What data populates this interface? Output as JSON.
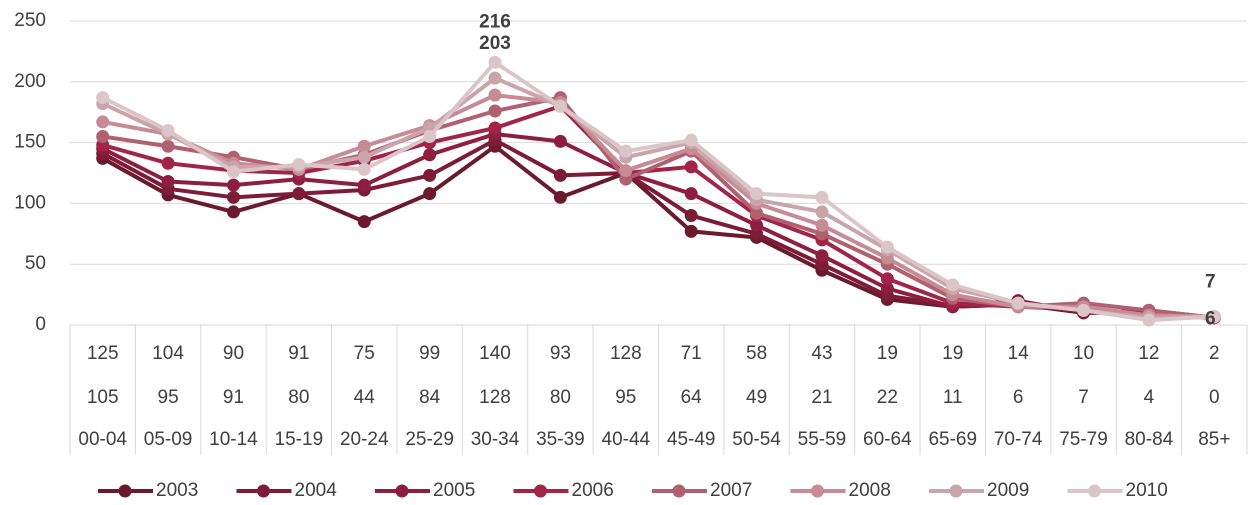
{
  "chart_data": {
    "type": "line",
    "categories": [
      "00-04",
      "05-09",
      "10-14",
      "15-19",
      "20-24",
      "25-29",
      "30-34",
      "35-39",
      "40-44",
      "45-49",
      "50-54",
      "55-59",
      "60-64",
      "65-69",
      "70-74",
      "75-79",
      "80-84",
      "85+"
    ],
    "series": [
      {
        "name": "2003",
        "color": "#6b1a2e",
        "values": [
          137,
          107,
          93,
          108,
          85,
          108,
          147,
          105,
          125,
          77,
          72,
          45,
          21,
          15,
          17,
          10,
          10,
          6
        ],
        "value_labels": [
          null,
          null,
          null,
          null,
          null,
          null,
          null,
          null,
          null,
          null,
          null,
          null,
          null,
          null,
          null,
          null,
          null,
          "6"
        ]
      },
      {
        "name": "2004",
        "color": "#7c1c37",
        "values": [
          141,
          112,
          105,
          108,
          111,
          123,
          152,
          123,
          125,
          90,
          75,
          50,
          24,
          16,
          20,
          10,
          12,
          6
        ],
        "value_labels": [
          null,
          null,
          null,
          null,
          null,
          null,
          null,
          null,
          null,
          null,
          null,
          null,
          null,
          null,
          null,
          null,
          null,
          null
        ]
      },
      {
        "name": "2005",
        "color": "#8e1e40",
        "values": [
          145,
          118,
          115,
          120,
          115,
          140,
          157,
          151,
          125,
          108,
          82,
          57,
          30,
          15,
          17,
          12,
          10,
          6
        ],
        "value_labels": [
          null,
          null,
          null,
          null,
          null,
          null,
          null,
          null,
          null,
          null,
          null,
          null,
          null,
          null,
          null,
          null,
          null,
          null
        ]
      },
      {
        "name": "2006",
        "color": "#a32449",
        "values": [
          148,
          133,
          127,
          125,
          135,
          150,
          162,
          180,
          125,
          130,
          90,
          70,
          38,
          18,
          15,
          13,
          8,
          6
        ],
        "value_labels": [
          null,
          null,
          null,
          null,
          null,
          null,
          null,
          null,
          null,
          null,
          null,
          null,
          null,
          null,
          null,
          null,
          null,
          null
        ]
      },
      {
        "name": "2007",
        "color": "#b0606f",
        "values": [
          155,
          147,
          138,
          128,
          140,
          160,
          176,
          187,
          120,
          143,
          92,
          75,
          50,
          22,
          15,
          18,
          12,
          6
        ],
        "value_labels": [
          null,
          null,
          null,
          null,
          null,
          null,
          null,
          null,
          null,
          null,
          null,
          null,
          null,
          null,
          null,
          null,
          null,
          null
        ]
      },
      {
        "name": "2008",
        "color": "#c68b94",
        "values": [
          167,
          157,
          133,
          128,
          147,
          164,
          189,
          183,
          127,
          145,
          100,
          82,
          55,
          25,
          15,
          15,
          8,
          7
        ],
        "value_labels": [
          null,
          null,
          null,
          null,
          null,
          null,
          null,
          null,
          null,
          null,
          null,
          null,
          null,
          null,
          null,
          null,
          null,
          null
        ]
      },
      {
        "name": "2009",
        "color": "#c9a4aa",
        "values": [
          182,
          157,
          130,
          130,
          138,
          162,
          203,
          180,
          138,
          150,
          103,
          93,
          62,
          30,
          18,
          12,
          6,
          7
        ],
        "value_labels": [
          null,
          null,
          null,
          null,
          null,
          null,
          "203",
          null,
          null,
          null,
          null,
          null,
          null,
          null,
          null,
          null,
          null,
          null
        ]
      },
      {
        "name": "2010",
        "color": "#dcc5c9",
        "values": [
          187,
          160,
          126,
          132,
          128,
          155,
          216,
          180,
          143,
          152,
          108,
          105,
          64,
          33,
          18,
          12,
          4,
          7
        ],
        "value_labels": [
          null,
          null,
          null,
          null,
          null,
          null,
          "216",
          null,
          null,
          null,
          null,
          null,
          null,
          null,
          null,
          null,
          null,
          "7"
        ]
      }
    ],
    "table_rows": [
      [
        "125",
        "104",
        "90",
        "91",
        "75",
        "99",
        "140",
        "93",
        "128",
        "71",
        "58",
        "43",
        "19",
        "19",
        "14",
        "10",
        "12",
        "2"
      ],
      [
        "105",
        "95",
        "91",
        "80",
        "44",
        "84",
        "128",
        "80",
        "95",
        "64",
        "49",
        "21",
        "22",
        "11",
        "6",
        "7",
        "4",
        "0"
      ]
    ],
    "ylim": [
      0,
      250
    ],
    "yticks": [
      0,
      50,
      100,
      150,
      200,
      250
    ],
    "grid": true,
    "legend": "bottom"
  }
}
